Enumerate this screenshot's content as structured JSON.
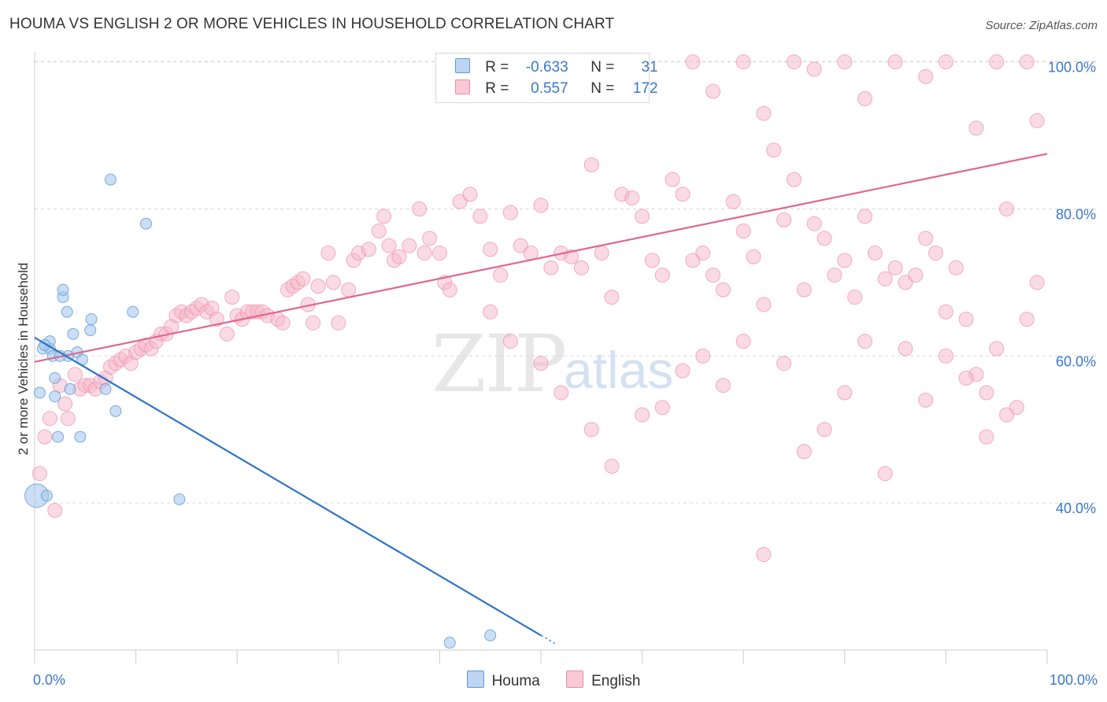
{
  "chart_data": {
    "type": "scatter",
    "title": "HOUMA VS ENGLISH 2 OR MORE VEHICLES IN HOUSEHOLD CORRELATION CHART",
    "source": "Source: ZipAtlas.com",
    "xlabel": "",
    "ylabel": "2 or more Vehicles in Household",
    "xlim": [
      0,
      100
    ],
    "ylim": [
      20,
      102
    ],
    "x_tick_labels": [
      "0.0%",
      "100.0%"
    ],
    "y_tick_labels": [
      "40.0%",
      "60.0%",
      "80.0%",
      "100.0%"
    ],
    "y_ticks": [
      40,
      60,
      80,
      100
    ],
    "watermark": [
      "ZIP",
      "atlas"
    ],
    "legend": {
      "r_label": "R =",
      "n_label": "N =",
      "rows": [
        {
          "name": "Houma",
          "r": "-0.633",
          "n": "31"
        },
        {
          "name": "English",
          "r": "0.557",
          "n": "172"
        }
      ]
    },
    "series": [
      {
        "name": "Houma",
        "color": "#5b9bd5",
        "fill": "#a8c8ee",
        "trend": {
          "x0": 0,
          "y0": 62.5,
          "x1": 50,
          "y1": 22
        },
        "points": [
          [
            0.5,
            55
          ],
          [
            0.8,
            61
          ],
          [
            1.5,
            61
          ],
          [
            1.5,
            62
          ],
          [
            1.8,
            60
          ],
          [
            2,
            54.5
          ],
          [
            2,
            57
          ],
          [
            2.3,
            49
          ],
          [
            2.8,
            68
          ],
          [
            2.8,
            69
          ],
          [
            3.2,
            66
          ],
          [
            3.3,
            60
          ],
          [
            3.5,
            55.5
          ],
          [
            3.8,
            63
          ],
          [
            4.2,
            60.5
          ],
          [
            4.5,
            49
          ],
          [
            4.7,
            59.5
          ],
          [
            5.5,
            63.5
          ],
          [
            5.6,
            65
          ],
          [
            7,
            55.5
          ],
          [
            7.5,
            84
          ],
          [
            8,
            52.5
          ],
          [
            9.7,
            66
          ],
          [
            11,
            78
          ],
          [
            14.3,
            40.5
          ],
          [
            0.2,
            41
          ],
          [
            1.2,
            41
          ],
          [
            41,
            21
          ],
          [
            45,
            22
          ],
          [
            1,
            61.5
          ],
          [
            2.5,
            60
          ]
        ],
        "sizes": [
          14,
          14,
          14,
          14,
          14,
          14,
          14,
          14,
          14,
          14,
          14,
          14,
          14,
          14,
          14,
          14,
          14,
          14,
          14,
          14,
          14,
          14,
          14,
          14,
          14,
          30,
          14,
          14,
          14,
          14,
          14
        ]
      },
      {
        "name": "English",
        "color": "#f08aaa",
        "fill": "#f5b8cc",
        "trend": {
          "x0": 0,
          "y0": 59.2,
          "x1": 100,
          "y1": 87.5
        },
        "points": [
          [
            0.5,
            44
          ],
          [
            1,
            49
          ],
          [
            1.5,
            51.5
          ],
          [
            2,
            39
          ],
          [
            2.5,
            56
          ],
          [
            3,
            53.5
          ],
          [
            3.3,
            51.5
          ],
          [
            4,
            57.5
          ],
          [
            4.5,
            55.5
          ],
          [
            5,
            56
          ],
          [
            5.5,
            56
          ],
          [
            6,
            55.5
          ],
          [
            6.5,
            56.5
          ],
          [
            7,
            57
          ],
          [
            7.5,
            58.5
          ],
          [
            8,
            59
          ],
          [
            8.5,
            59.5
          ],
          [
            9,
            60
          ],
          [
            9.5,
            59
          ],
          [
            10,
            60.5
          ],
          [
            10.5,
            61
          ],
          [
            11,
            61.5
          ],
          [
            11.5,
            61
          ],
          [
            12,
            62
          ],
          [
            12.5,
            63
          ],
          [
            13,
            63
          ],
          [
            13.5,
            64
          ],
          [
            14,
            65.5
          ],
          [
            14.5,
            66
          ],
          [
            15,
            65.5
          ],
          [
            15.5,
            66
          ],
          [
            16,
            66.5
          ],
          [
            16.5,
            67
          ],
          [
            17,
            66
          ],
          [
            17.5,
            66.5
          ],
          [
            18,
            65
          ],
          [
            19,
            63
          ],
          [
            19.5,
            68
          ],
          [
            20,
            65.5
          ],
          [
            20.5,
            65
          ],
          [
            21,
            66
          ],
          [
            21.5,
            66
          ],
          [
            22,
            66
          ],
          [
            22.5,
            66
          ],
          [
            23,
            65.5
          ],
          [
            24,
            65
          ],
          [
            24.5,
            64.5
          ],
          [
            25,
            69
          ],
          [
            25.5,
            69.5
          ],
          [
            26,
            70
          ],
          [
            26.5,
            70.5
          ],
          [
            27,
            67
          ],
          [
            27.5,
            64.5
          ],
          [
            28,
            69.5
          ],
          [
            29,
            74
          ],
          [
            29.5,
            70
          ],
          [
            30,
            64.5
          ],
          [
            31,
            69
          ],
          [
            31.5,
            73
          ],
          [
            32,
            74
          ],
          [
            33,
            74.5
          ],
          [
            34,
            77
          ],
          [
            34.5,
            79
          ],
          [
            35,
            75
          ],
          [
            35.5,
            73
          ],
          [
            36,
            73.5
          ],
          [
            37,
            75
          ],
          [
            38,
            80
          ],
          [
            38.5,
            74
          ],
          [
            39,
            76
          ],
          [
            40,
            74
          ],
          [
            40.5,
            70
          ],
          [
            41,
            69
          ],
          [
            42,
            81
          ],
          [
            43,
            82
          ],
          [
            44,
            79
          ],
          [
            45,
            74.5
          ],
          [
            46,
            71
          ],
          [
            47,
            79.5
          ],
          [
            48,
            75
          ],
          [
            49,
            74
          ],
          [
            50,
            80.5
          ],
          [
            51,
            72
          ],
          [
            52,
            74
          ],
          [
            53,
            73.5
          ],
          [
            54,
            72
          ],
          [
            55,
            86
          ],
          [
            56,
            74
          ],
          [
            57,
            68
          ],
          [
            58,
            82
          ],
          [
            59,
            81.5
          ],
          [
            60,
            79
          ],
          [
            61,
            73
          ],
          [
            62,
            71
          ],
          [
            63,
            84
          ],
          [
            64,
            82
          ],
          [
            65,
            73
          ],
          [
            66,
            74
          ],
          [
            67,
            71
          ],
          [
            68,
            69
          ],
          [
            69,
            81
          ],
          [
            70,
            77
          ],
          [
            71,
            73.5
          ],
          [
            72,
            67
          ],
          [
            73,
            88
          ],
          [
            74,
            78.5
          ],
          [
            75,
            84
          ],
          [
            76,
            69
          ],
          [
            77,
            78
          ],
          [
            78,
            76
          ],
          [
            79,
            71
          ],
          [
            80,
            73
          ],
          [
            81,
            68
          ],
          [
            82,
            79
          ],
          [
            83,
            74
          ],
          [
            84,
            70.5
          ],
          [
            85,
            72
          ],
          [
            86,
            70
          ],
          [
            87,
            71
          ],
          [
            88,
            76
          ],
          [
            89,
            74
          ],
          [
            90,
            66
          ],
          [
            91,
            72
          ],
          [
            92,
            65
          ],
          [
            93,
            57.5
          ],
          [
            94,
            55
          ],
          [
            95,
            61
          ],
          [
            96,
            80
          ],
          [
            97,
            53
          ],
          [
            98,
            65
          ],
          [
            99,
            70
          ],
          [
            45,
            66
          ],
          [
            47,
            62
          ],
          [
            50,
            59
          ],
          [
            52,
            55
          ],
          [
            55,
            50
          ],
          [
            57,
            45
          ],
          [
            60,
            52
          ],
          [
            62,
            53
          ],
          [
            64,
            58
          ],
          [
            66,
            60
          ],
          [
            68,
            56
          ],
          [
            70,
            62
          ],
          [
            72,
            33
          ],
          [
            74,
            59
          ],
          [
            76,
            47
          ],
          [
            78,
            50
          ],
          [
            80,
            55
          ],
          [
            82,
            62
          ],
          [
            84,
            44
          ],
          [
            86,
            61
          ],
          [
            88,
            54
          ],
          [
            90,
            60
          ],
          [
            92,
            57
          ],
          [
            94,
            49
          ],
          [
            96,
            52
          ],
          [
            60,
            100
          ],
          [
            65,
            100
          ],
          [
            70,
            100
          ],
          [
            75,
            100
          ],
          [
            80,
            100
          ],
          [
            85,
            100
          ],
          [
            90,
            100
          ],
          [
            95,
            100
          ],
          [
            98,
            100
          ],
          [
            67,
            96
          ],
          [
            72,
            93
          ],
          [
            77,
            99
          ],
          [
            82,
            95
          ],
          [
            88,
            98
          ],
          [
            93,
            91
          ],
          [
            99,
            92
          ]
        ]
      }
    ]
  },
  "colors": {
    "houma_fill": "#a8c8ee",
    "houma_stroke": "#5b9bd5",
    "houma_line": "#2f74c8",
    "english_fill": "#f5b8cc",
    "english_stroke": "#f08aaa",
    "english_line": "#e0668f",
    "grid": "#d9d9d9",
    "tick_text": "#3a78c8"
  }
}
